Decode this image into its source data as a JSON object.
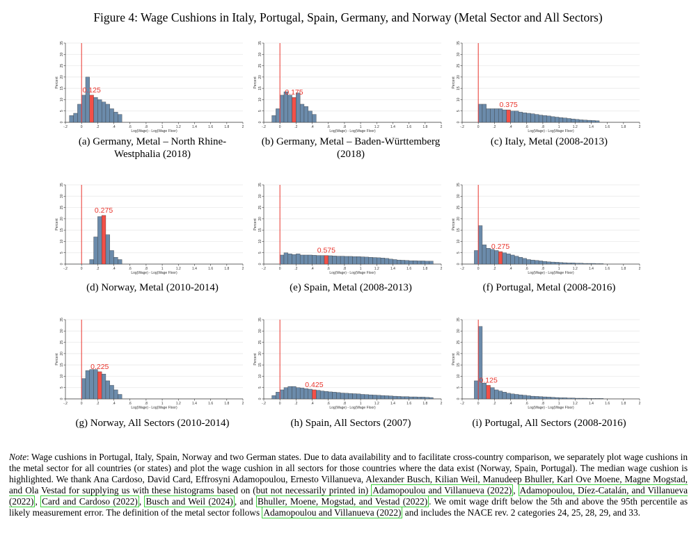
{
  "title": "Figure 4: Wage Cushions in Italy, Portugal, Spain, Germany, and Norway (Metal Sector and All Sectors)",
  "panels": [
    {
      "caption": "(a) Germany, Metal – North Rhine-Westphalia (2018)",
      "median": "0.125"
    },
    {
      "caption": "(b) Germany, Metal – Baden-Württemberg (2018)",
      "median": "0.175"
    },
    {
      "caption": "(c) Italy, Metal (2008-2013)",
      "median": "0.375"
    },
    {
      "caption": "(d) Norway, Metal (2010-2014)",
      "median": "0.275"
    },
    {
      "caption": "(e) Spain, Metal (2008-2013)",
      "median": "0.575"
    },
    {
      "caption": "(f) Portugal, Metal (2008-2016)",
      "median": "0.275"
    },
    {
      "caption": "(g) Norway, All Sectors (2010-2014)",
      "median": "0.225"
    },
    {
      "caption": "(h) Spain, All Sectors (2007)",
      "median": "0.425"
    },
    {
      "caption": "(i) Portugal, All Sectors (2008-2016)",
      "median": "0.125"
    }
  ],
  "axes": {
    "xlabel": "Log(Wage) - Log(Wage Floor)",
    "ylabel": "Percent",
    "xticks": [
      "-.2",
      "0",
      ".2",
      ".4",
      ".6",
      ".8",
      "1",
      "1.2",
      "1.4",
      "1.6",
      "1.8",
      "2"
    ],
    "yticks": [
      "0",
      "5",
      "10",
      "15",
      "20",
      "25",
      "30",
      "35"
    ]
  },
  "chart_data": [
    {
      "type": "bar",
      "title": "(a) Germany, Metal – North Rhine-Westphalia (2018)",
      "xlabel": "Log(Wage) - Log(Wage Floor)",
      "ylabel": "Percent",
      "xlim": [
        -0.2,
        2
      ],
      "ylim": [
        0,
        35
      ],
      "bin_width": 0.05,
      "x_start": -0.15,
      "values": [
        3,
        4,
        8,
        12,
        20,
        12,
        11,
        10,
        9,
        8,
        6,
        4.5,
        3.5
      ],
      "median": 0.125
    },
    {
      "type": "bar",
      "title": "(b) Germany, Metal – Baden-Württemberg (2018)",
      "xlabel": "Log(Wage) - Log(Wage Floor)",
      "ylabel": "Percent",
      "xlim": [
        -0.2,
        2
      ],
      "ylim": [
        0,
        35
      ],
      "bin_width": 0.05,
      "x_start": -0.1,
      "values": [
        3,
        6,
        12,
        13.5,
        12,
        11,
        13,
        8,
        7,
        5,
        3.5
      ],
      "median": 0.175
    },
    {
      "type": "bar",
      "title": "(c) Italy, Metal (2008-2013)",
      "xlabel": "Log(Wage) - Log(Wage Floor)",
      "ylabel": "Percent",
      "xlim": [
        -0.2,
        2
      ],
      "ylim": [
        0,
        35
      ],
      "bin_width": 0.05,
      "x_start": 0.0,
      "values": [
        8,
        8,
        6,
        6,
        6,
        6,
        5.5,
        5.5,
        5,
        5,
        4.5,
        4.2,
        4,
        3.8,
        3.5,
        3.2,
        3,
        2.8,
        2.5,
        2.3,
        2.1,
        1.9,
        1.7,
        1.5,
        1.3,
        1.1,
        1,
        0.9,
        0.8,
        0.7
      ],
      "median": 0.375
    },
    {
      "type": "bar",
      "title": "(d) Norway, Metal (2010-2014)",
      "xlabel": "Log(Wage) - Log(Wage Floor)",
      "ylabel": "Percent",
      "xlim": [
        -0.2,
        2
      ],
      "ylim": [
        0,
        35
      ],
      "bin_width": 0.05,
      "x_start": 0.1,
      "values": [
        2,
        12,
        21,
        21.5,
        13,
        6,
        3,
        2
      ],
      "median": 0.275
    },
    {
      "type": "bar",
      "title": "(e) Spain, Metal (2008-2013)",
      "xlabel": "Log(Wage) - Log(Wage Floor)",
      "ylabel": "Percent",
      "xlim": [
        -0.2,
        2
      ],
      "ylim": [
        0,
        35
      ],
      "bin_width": 0.05,
      "x_start": 0.0,
      "values": [
        4,
        5,
        4.5,
        4.2,
        4.5,
        4,
        4,
        4,
        3.9,
        3.8,
        3.8,
        3.8,
        3.7,
        3.6,
        3.5,
        3.5,
        3.4,
        3.4,
        3.3,
        3.3,
        3.2,
        3.1,
        3,
        2.9,
        2.8,
        2.7,
        2.5,
        2.2,
        2,
        1.8,
        1.7,
        1.6,
        1.5,
        1.5,
        1.4,
        1.4,
        1.3,
        1.3
      ],
      "median": 0.575
    },
    {
      "type": "bar",
      "title": "(f) Portugal, Metal (2008-2016)",
      "xlabel": "Log(Wage) - Log(Wage Floor)",
      "ylabel": "Percent",
      "xlim": [
        -0.2,
        2
      ],
      "ylim": [
        0,
        35
      ],
      "bin_width": 0.05,
      "x_start": -0.05,
      "values": [
        6,
        17,
        8.5,
        7,
        6.5,
        6,
        5.5,
        5,
        4.5,
        4,
        3.5,
        3,
        2.5,
        2,
        1.8,
        1.6,
        1.4,
        1.2,
        1,
        0.9,
        0.8,
        0.7,
        0.6,
        0.5,
        0.5,
        0.4,
        0.4,
        0.3,
        0.3,
        0.3,
        0.2,
        0.2
      ],
      "median": 0.275
    },
    {
      "type": "bar",
      "title": "(g) Norway, All Sectors (2010-2014)",
      "xlabel": "Log(Wage) - Log(Wage Floor)",
      "ylabel": "Percent",
      "xlim": [
        -0.2,
        2
      ],
      "ylim": [
        0,
        35
      ],
      "bin_width": 0.05,
      "x_start": 0.0,
      "values": [
        9,
        12.5,
        13,
        13,
        12,
        11,
        8,
        6,
        4,
        2
      ],
      "median": 0.225
    },
    {
      "type": "bar",
      "title": "(h) Spain, All Sectors (2007)",
      "xlabel": "Log(Wage) - Log(Wage Floor)",
      "ylabel": "Percent",
      "xlim": [
        -0.2,
        2
      ],
      "ylim": [
        0,
        35
      ],
      "bin_width": 0.05,
      "x_start": -0.1,
      "values": [
        1.5,
        3,
        4,
        5,
        5.5,
        5.5,
        5,
        4.8,
        4.5,
        4.3,
        4,
        3.8,
        3.5,
        3.3,
        3.1,
        3,
        2.8,
        2.6,
        2.5,
        2.4,
        2.3,
        2.2,
        2,
        1.9,
        1.8,
        1.7,
        1.6,
        1.5,
        1.4,
        1.3,
        1.2,
        1.1,
        1,
        1,
        0.9,
        0.9,
        0.8,
        0.8,
        0.7,
        0.6
      ],
      "median": 0.425
    },
    {
      "type": "bar",
      "title": "(i) Portugal, All Sectors (2008-2016)",
      "xlabel": "Log(Wage) - Log(Wage Floor)",
      "ylabel": "Percent",
      "xlim": [
        -0.2,
        2
      ],
      "ylim": [
        0,
        35
      ],
      "bin_width": 0.05,
      "x_start": -0.05,
      "values": [
        8,
        32,
        7,
        6,
        5,
        4,
        3.5,
        3,
        2.5,
        2.2,
        2,
        1.8,
        1.6,
        1.4,
        1.2,
        1.1,
        1,
        0.9,
        0.8,
        0.7,
        0.6,
        0.5,
        0.5,
        0.4,
        0.4,
        0.3,
        0.3,
        0.3,
        0.2,
        0.2,
        0.2,
        0.2
      ],
      "median": 0.125
    }
  ],
  "colors": {
    "bar": "#6b8bab",
    "median_bar": "#f25048",
    "median_text": "#e8332b",
    "floor_line": "#e8332b",
    "grid": "#e6e6e6",
    "cite_box": "#3bd13b"
  },
  "note": {
    "label": "Note",
    "t1": ": Wage cushions in Portugal, Italy, Spain, Norway and two German states. Due to data availability and to facilitate cross-country comparison, we separately plot wage cushions in the metal sector for all countries (or states) and plot the wage cushion in all sectors for those countries where the data exist (Norway, Spain, Portugal). The median wage cushion is highlighted. We thank Ana Cardoso, David Card, Effrosyni Adamopoulou, Ernesto Villanueva, Alexander Busch, Kilian Weil, Manudeep Bhuller, Karl Ove Moene, Magne Mogstad, and Ola Vestad for supplying us with these histograms based on (but not necessarily printed in) ",
    "c1": "Adamopoulou and Villanueva (2022)",
    "s1": ", ",
    "c2": "Adamopoulou, Díez-Catalán, and Villanueva (2022)",
    "s2": ", ",
    "c3": "Card and Cardoso (2022)",
    "s3": ", ",
    "c4": "Busch and Weil (2024)",
    "s4": ", and ",
    "c5": "Bhuller, Moene, Mogstad, and Vestad (2022)",
    "t2": ". We omit wage drift below the 5th and above the 95th percentile as likely measurement error. The definition of the metal sector follows ",
    "c6": "Adamopoulou and Villanueva (2022)",
    "t3": " and includes the NACE rev. 2 categories 24, 25, 28, 29, and 33."
  }
}
